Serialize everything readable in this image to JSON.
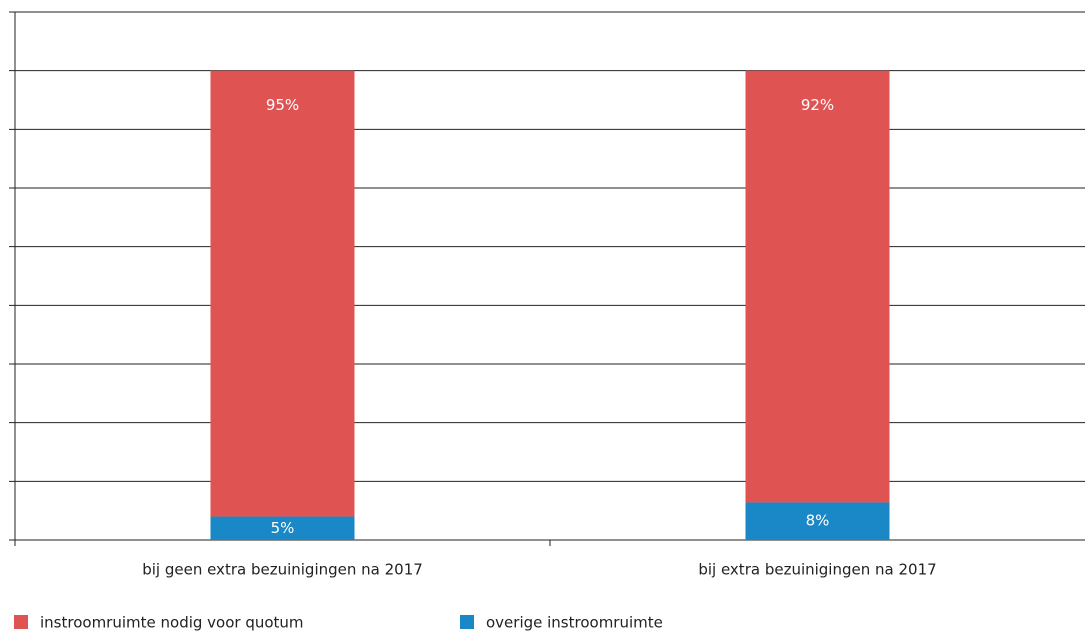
{
  "chart_data": {
    "type": "stacked_bar",
    "categories": [
      "bij geen extra bezuinigingen na 2017",
      "bij extra bezuinigingen na 2017"
    ],
    "series": [
      {
        "name": "overige instroomruimte",
        "color": "#1a87c7",
        "values": [
          5,
          8
        ],
        "value_labels": [
          "5%",
          "8%"
        ]
      },
      {
        "name": "instroomruimte nodig voor quotum",
        "color": "#e05353",
        "values": [
          95,
          92
        ],
        "value_labels": [
          "95%",
          "92%"
        ]
      }
    ],
    "legend_order": [
      1,
      0
    ],
    "ylim": [
      0,
      112.5
    ],
    "yticks": [
      0,
      12.5,
      25,
      37.5,
      50,
      62.5,
      75,
      87.5,
      100,
      112.5
    ],
    "grid": true
  }
}
